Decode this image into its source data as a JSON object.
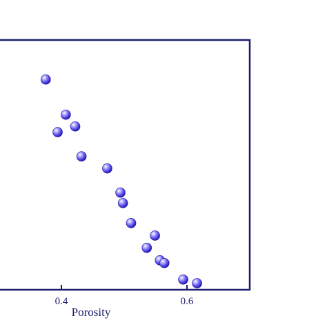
{
  "chart_data": {
    "type": "scatter",
    "xlabel": "Porosity",
    "xticks": [
      {
        "value": 0.4,
        "label": "0.4"
      },
      {
        "value": 0.6,
        "label": "0.6"
      }
    ],
    "xlim": [
      0.3,
      0.7
    ],
    "ylim": [
      0,
      1
    ],
    "grid": false,
    "points": [
      {
        "x": 0.375,
        "y": 0.842
      },
      {
        "x": 0.407,
        "y": 0.701
      },
      {
        "x": 0.394,
        "y": 0.631
      },
      {
        "x": 0.422,
        "y": 0.654
      },
      {
        "x": 0.432,
        "y": 0.534
      },
      {
        "x": 0.473,
        "y": 0.486
      },
      {
        "x": 0.494,
        "y": 0.389
      },
      {
        "x": 0.498,
        "y": 0.347
      },
      {
        "x": 0.511,
        "y": 0.267
      },
      {
        "x": 0.549,
        "y": 0.217
      },
      {
        "x": 0.536,
        "y": 0.168
      },
      {
        "x": 0.557,
        "y": 0.118
      },
      {
        "x": 0.564,
        "y": 0.107
      },
      {
        "x": 0.594,
        "y": 0.041
      },
      {
        "x": 0.616,
        "y": 0.026
      }
    ],
    "colors": {
      "frame": "#1a1a6e",
      "marker_light": "#d9d6ff",
      "marker_mid": "#6a5cf0",
      "marker_dark": "#1f13a8"
    }
  }
}
